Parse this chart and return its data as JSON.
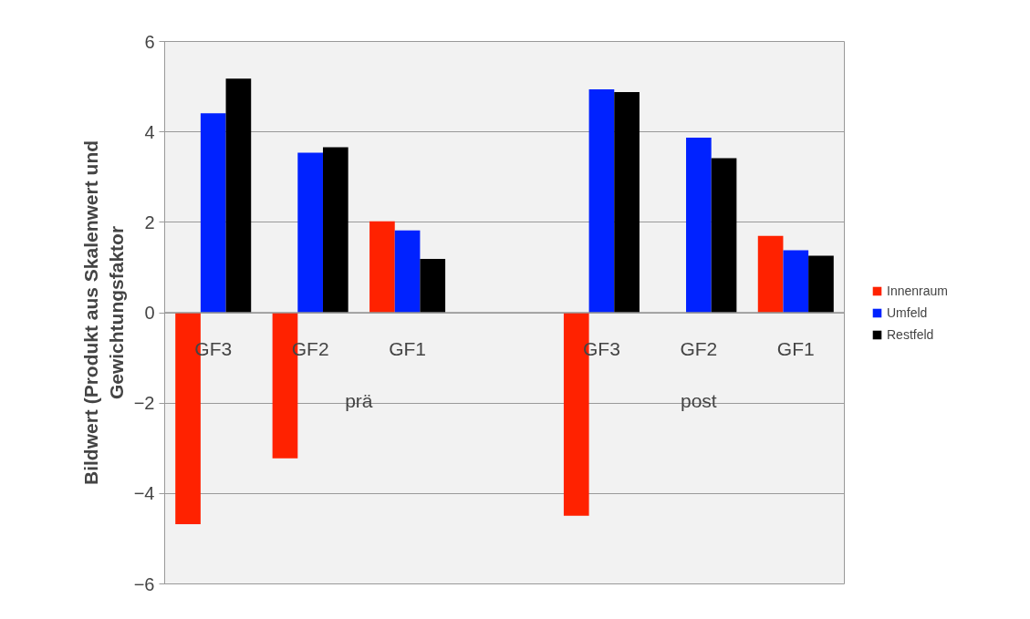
{
  "chart_data": {
    "type": "bar",
    "ylabel": "Bildwert (Produkt aus Skalenwert und\nGewichtungsfaktor",
    "categories": [
      "GF3",
      "GF2",
      "GF1",
      null,
      "GF3",
      "GF2",
      "GF1"
    ],
    "series": [
      {
        "name": "Innenraum",
        "color": "#ff2200",
        "values": [
          -4.68,
          -3.22,
          2.02,
          null,
          -4.49,
          null,
          1.7
        ]
      },
      {
        "name": "Umfeld",
        "color": "#0022ff",
        "values": [
          4.41,
          3.54,
          1.82,
          null,
          4.94,
          3.87,
          1.38
        ]
      },
      {
        "name": "Restfeld",
        "color": "#000000",
        "values": [
          5.18,
          3.66,
          1.19,
          null,
          4.88,
          3.42,
          1.26
        ]
      }
    ],
    "annotations": [
      "prä",
      "post"
    ],
    "ylim": [
      -6,
      6
    ],
    "yticks": [
      -6,
      -4,
      -2,
      0,
      2,
      4,
      6
    ],
    "grid": "y",
    "legend": "right"
  }
}
